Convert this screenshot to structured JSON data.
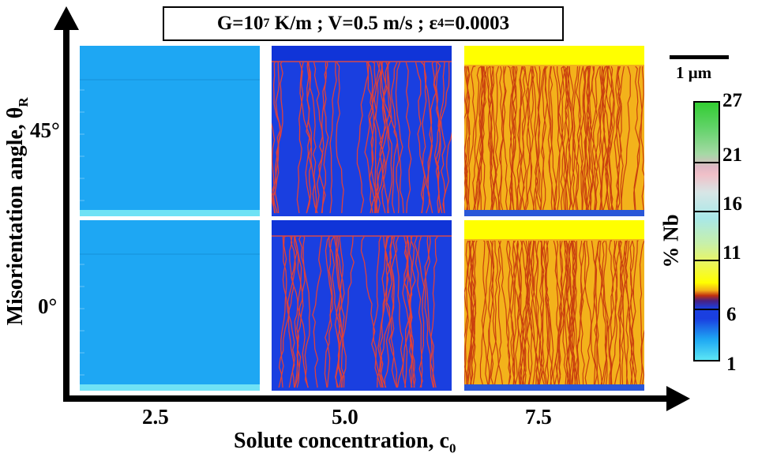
{
  "title": {
    "g_prefix": "G=10",
    "g_exp": "7",
    "rest": " K/m ; V=0.5 m/s ; ε",
    "eps_sub": "4",
    "eps_val": "=0.0003"
  },
  "axes": {
    "x_label": "Solute concentration, c",
    "x_label_sub": "0",
    "y_label": "Misorientation angle, θ",
    "y_label_sub": "R",
    "x_ticks": [
      "2.5",
      "5.0",
      "7.5"
    ],
    "y_ticks": [
      "45°",
      "0°"
    ]
  },
  "scale_bar": {
    "label": "1 μm"
  },
  "colorbar": {
    "label": "% Nb",
    "ticks": [
      "27",
      "21",
      "16",
      "11",
      "6",
      "1"
    ]
  },
  "colors": {
    "low_conc": "#1ea7f3",
    "mid_conc": "#1a3fe0",
    "high_conc_bg": "#f3b21b",
    "high_conc_line": "#c9400f",
    "liquid_yellow": "#ffff00"
  }
}
